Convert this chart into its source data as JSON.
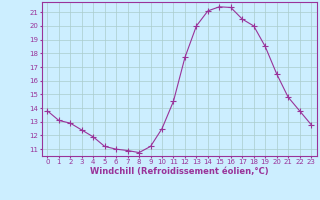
{
  "x": [
    0,
    1,
    2,
    3,
    4,
    5,
    6,
    7,
    8,
    9,
    10,
    11,
    12,
    13,
    14,
    15,
    16,
    17,
    18,
    19,
    20,
    21,
    22,
    23
  ],
  "y": [
    13.8,
    13.1,
    12.9,
    12.4,
    11.9,
    11.2,
    11.0,
    10.9,
    10.75,
    11.2,
    12.5,
    14.5,
    17.7,
    20.0,
    21.1,
    21.4,
    21.35,
    20.5,
    20.0,
    18.5,
    16.5,
    14.8,
    13.8,
    12.8
  ],
  "line_color": "#993399",
  "marker": "+",
  "marker_size": 4,
  "bg_color": "#cceeff",
  "grid_color": "#aacccc",
  "xlabel": "Windchill (Refroidissement éolien,°C)",
  "xlabel_color": "#993399",
  "tick_color": "#993399",
  "spine_color": "#993399",
  "ylim": [
    10.5,
    21.75
  ],
  "xlim": [
    -0.5,
    23.5
  ],
  "yticks": [
    11,
    12,
    13,
    14,
    15,
    16,
    17,
    18,
    19,
    20,
    21
  ],
  "xticks": [
    0,
    1,
    2,
    3,
    4,
    5,
    6,
    7,
    8,
    9,
    10,
    11,
    12,
    13,
    14,
    15,
    16,
    17,
    18,
    19,
    20,
    21,
    22,
    23
  ],
  "tick_fontsize": 5.0,
  "xlabel_fontsize": 6.0
}
